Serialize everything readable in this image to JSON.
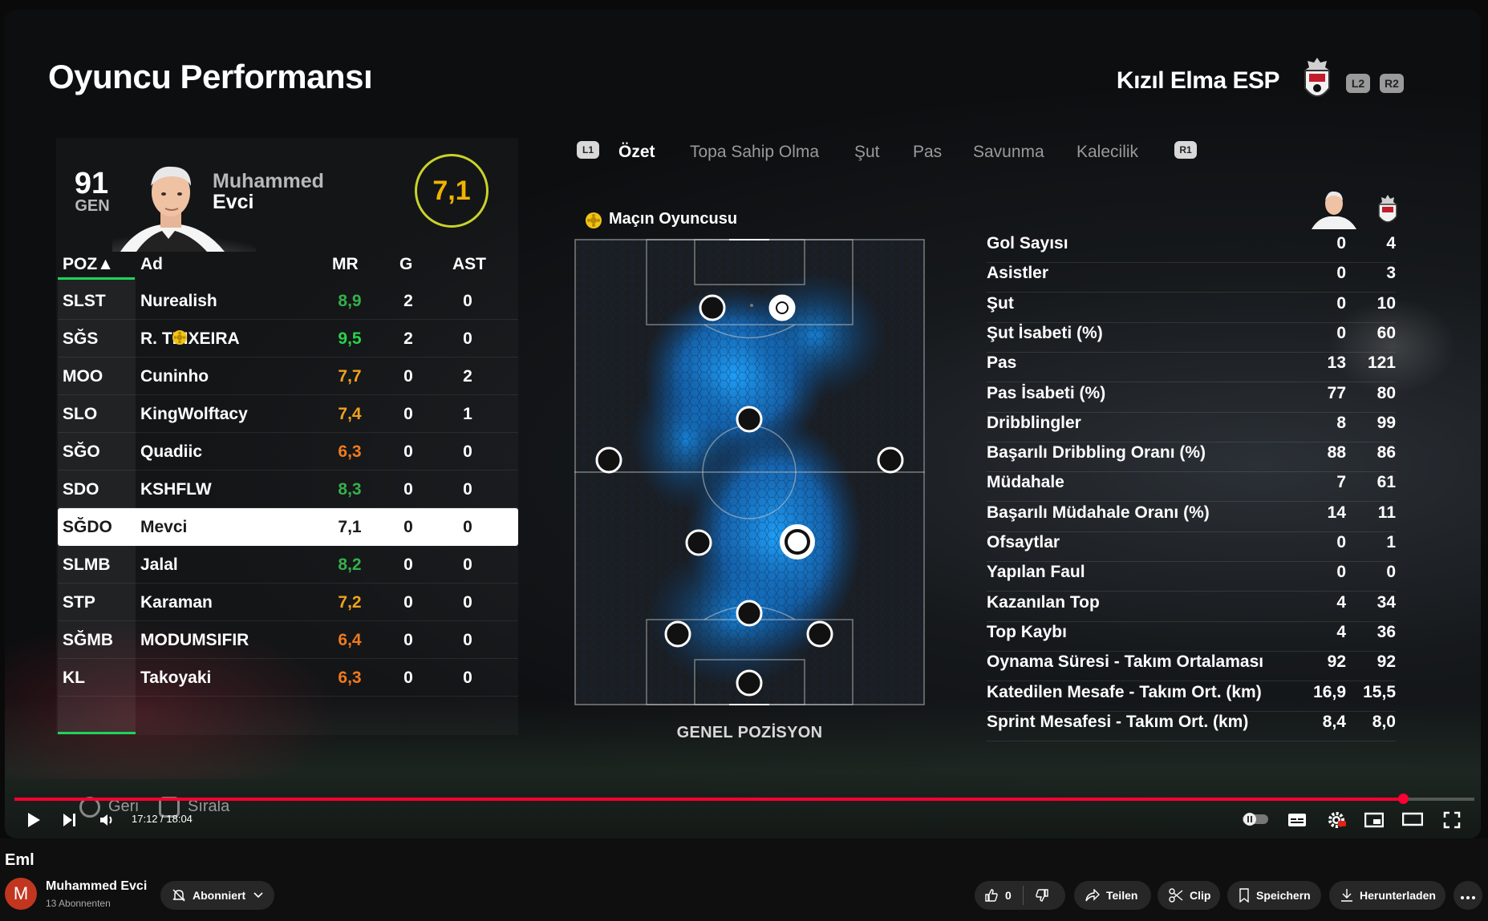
{
  "game": {
    "title": "Oyuncu Performansı",
    "team_name": "Kızıl Elma ESP",
    "btn_l2": "L2",
    "btn_r2": "R2",
    "btn_l1": "L1",
    "btn_r1": "R1",
    "player": {
      "gen_value": "91",
      "gen_label": "GEN",
      "first_name": "Muhammed",
      "last_name": "Evci",
      "rating": "7,1"
    },
    "table": {
      "headers": {
        "poz": "POZ▲",
        "ad": "Ad",
        "mr": "MR",
        "g": "G",
        "ast": "AST"
      },
      "rows": [
        {
          "pos": "SLST",
          "name": "Nurealish",
          "mr": "8,9",
          "g": "2",
          "ast": "0",
          "color": "#33b14a"
        },
        {
          "pos": "SĞS",
          "name": "R. TEIXEIRA",
          "mr": "9,5",
          "g": "2",
          "ast": "0",
          "color": "#29d24a"
        },
        {
          "pos": "MOO",
          "name": "Cuninho",
          "mr": "7,7",
          "g": "0",
          "ast": "2",
          "color": "#f0a21e"
        },
        {
          "pos": "SLO",
          "name": "KingWolftacy",
          "mr": "7,4",
          "g": "0",
          "ast": "1",
          "color": "#f0a21e"
        },
        {
          "pos": "SĞO",
          "name": "Quadiic",
          "mr": "6,3",
          "g": "0",
          "ast": "0",
          "color": "#f07a1e"
        },
        {
          "pos": "SDO",
          "name": "KSHFLW",
          "mr": "8,3",
          "g": "0",
          "ast": "0",
          "color": "#33b14a"
        },
        {
          "pos": "SĞDO",
          "name": "Mevci",
          "mr": "7,1",
          "g": "0",
          "ast": "0",
          "color": "#1a1a1a"
        },
        {
          "pos": "SLMB",
          "name": "Jalal",
          "mr": "8,2",
          "g": "0",
          "ast": "0",
          "color": "#33b14a"
        },
        {
          "pos": "STP",
          "name": "Karaman",
          "mr": "7,2",
          "g": "0",
          "ast": "0",
          "color": "#f0a21e"
        },
        {
          "pos": "SĞMB",
          "name": "MODUMSIFIR",
          "mr": "6,4",
          "g": "0",
          "ast": "0",
          "color": "#f07a1e"
        },
        {
          "pos": "KL",
          "name": "Takoyaki",
          "mr": "6,3",
          "g": "0",
          "ast": "0",
          "color": "#f07a1e"
        }
      ]
    },
    "tabs": [
      "Özet",
      "Topa Sahip Olma",
      "Şut",
      "Pas",
      "Savunma",
      "Kalecilik"
    ],
    "motm_label": "Maçın Oyuncusu",
    "pitch_caption": "GENEL POZİSYON",
    "stats": [
      {
        "label": "Gol Sayısı",
        "player": "0",
        "team": "4"
      },
      {
        "label": "Asistler",
        "player": "0",
        "team": "3"
      },
      {
        "label": "Şut",
        "player": "0",
        "team": "10"
      },
      {
        "label": "Şut İsabeti (%)",
        "player": "0",
        "team": "60"
      },
      {
        "label": "Pas",
        "player": "13",
        "team": "121"
      },
      {
        "label": "Pas İsabeti (%)",
        "player": "77",
        "team": "80"
      },
      {
        "label": "Dribblingler",
        "player": "8",
        "team": "99"
      },
      {
        "label": "Başarılı Dribbling Oranı (%)",
        "player": "88",
        "team": "86"
      },
      {
        "label": "Müdahale",
        "player": "7",
        "team": "61"
      },
      {
        "label": "Başarılı Müdahale Oranı (%)",
        "player": "14",
        "team": "11"
      },
      {
        "label": "Ofsaytlar",
        "player": "0",
        "team": "1"
      },
      {
        "label": "Yapılan Faul",
        "player": "0",
        "team": "0"
      },
      {
        "label": "Kazanılan Top",
        "player": "4",
        "team": "34"
      },
      {
        "label": "Top Kaybı",
        "player": "4",
        "team": "36"
      },
      {
        "label": "Oynama Süresi - Takım Ortalaması",
        "player": "92",
        "team": "92"
      },
      {
        "label": "Katedilen Mesafe - Takım Ort. (km)",
        "player": "16,9",
        "team": "15,5"
      },
      {
        "label": "Sprint Mesafesi - Takım Ort. (km)",
        "player": "8,4",
        "team": "8,0"
      }
    ],
    "hint_back": "Geri",
    "hint_sort": "Sırala"
  },
  "player_controls": {
    "time": "17:12 / 18:04",
    "progress": 0.951,
    "accent": "#ff0033"
  },
  "video": {
    "title": "Eml",
    "channel": "Muhammed Evci",
    "channel_initial": "M",
    "subscribers": "13 Abonnenten",
    "subscribe_label": "Abonniert",
    "likes": "0",
    "share": "Teilen",
    "clip": "Clip",
    "save": "Speichern",
    "download": "Herunterladen"
  }
}
